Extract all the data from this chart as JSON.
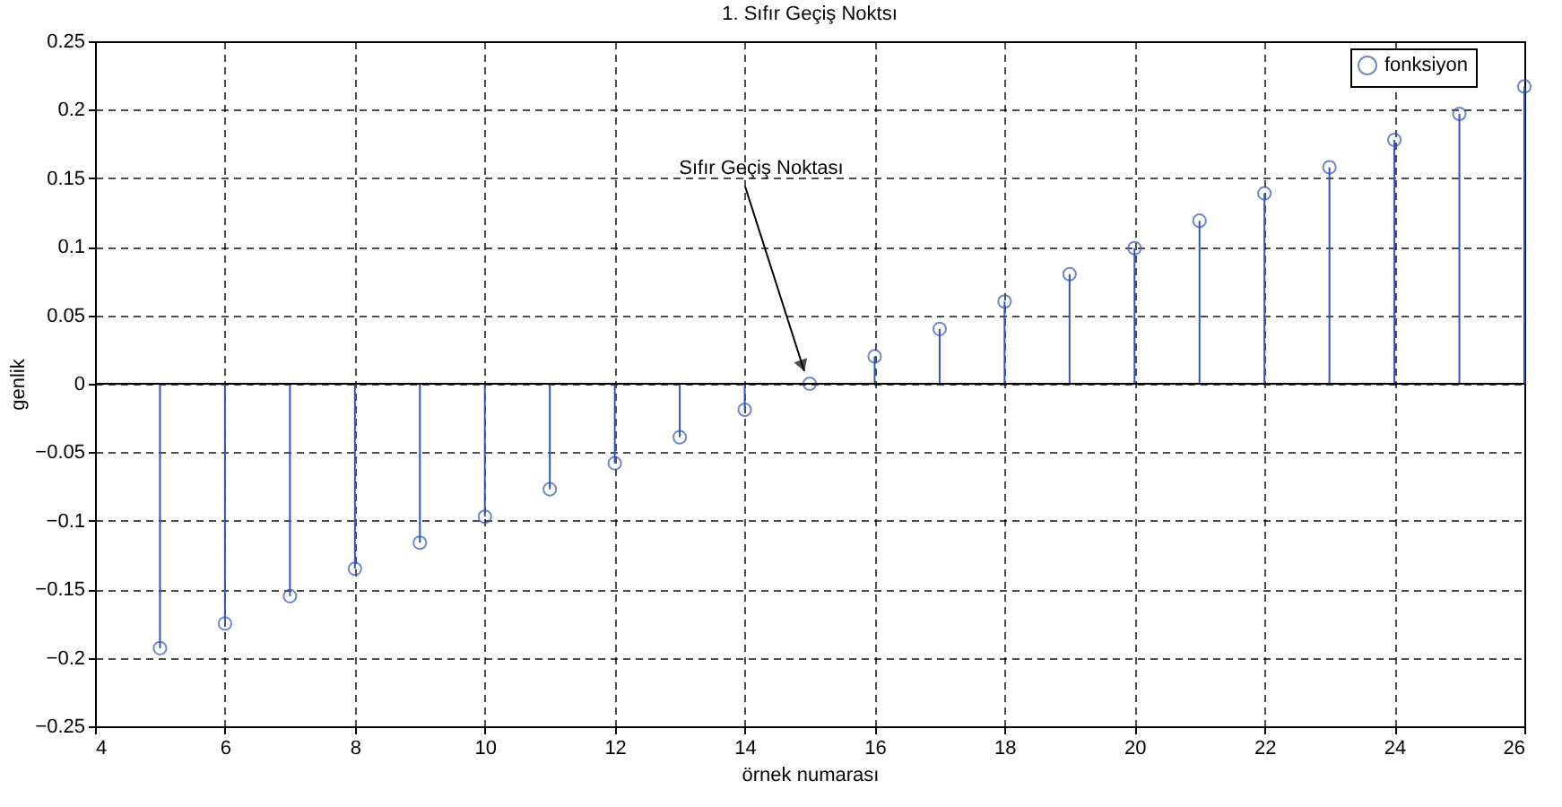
{
  "chart_data": {
    "type": "lollipop",
    "title": "1. Sıfır Geçiş Noktsı",
    "xlabel": "örnek numarası",
    "ylabel": "genlik",
    "x": [
      5,
      6,
      7,
      8,
      9,
      10,
      11,
      12,
      13,
      14,
      15,
      16,
      17,
      18,
      19,
      20,
      21,
      22,
      23,
      24,
      25,
      26
    ],
    "series": [
      {
        "name": "fonksiyon",
        "color": "#3355bb",
        "values": [
          -0.193,
          -0.175,
          -0.155,
          -0.135,
          -0.116,
          -0.097,
          -0.077,
          -0.058,
          -0.039,
          -0.019,
          0,
          0.02,
          0.04,
          0.06,
          0.08,
          0.099,
          0.119,
          0.139,
          0.158,
          0.178,
          0.197,
          0.217
        ]
      }
    ],
    "xlim": [
      4,
      26
    ],
    "xticks": [
      4,
      6,
      8,
      10,
      12,
      14,
      16,
      18,
      20,
      22,
      24,
      26
    ],
    "ylim": [
      -0.25,
      0.25
    ],
    "yticks": [
      -0.25,
      -0.2,
      -0.15,
      -0.1,
      -0.05,
      0,
      0.05,
      0.1,
      0.15,
      0.2,
      0.25
    ],
    "annotations": [
      {
        "text": "Sıfır Geçiş Noktası",
        "x": 15,
        "y": 0
      }
    ],
    "grid": true,
    "legend": "top right",
    "marker": "circle"
  }
}
